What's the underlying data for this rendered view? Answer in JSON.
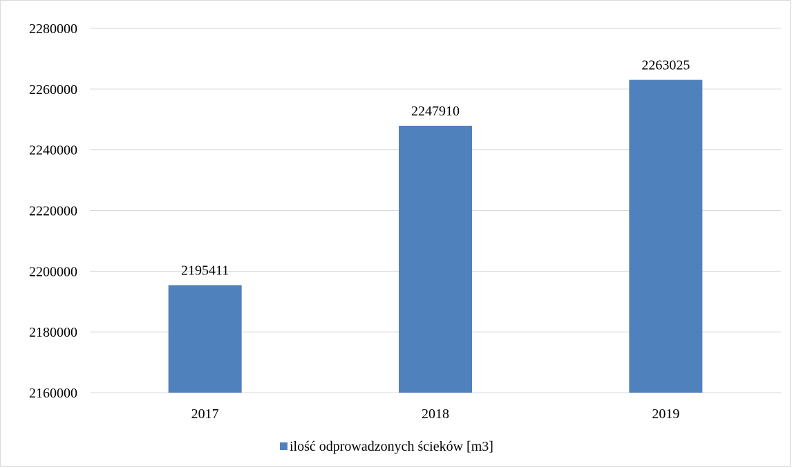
{
  "chart_data": {
    "type": "bar",
    "categories": [
      "2017",
      "2018",
      "2019"
    ],
    "series": [
      {
        "name": "ilość odprowadzonych ścieków [m3]",
        "values": [
          2195411,
          2247910,
          2263025
        ],
        "color": "#4F81BD"
      }
    ],
    "data_labels": [
      "2195411",
      "2247910",
      "2263025"
    ],
    "ylim": [
      2160000,
      2280000
    ],
    "yticks": [
      2160000,
      2180000,
      2200000,
      2220000,
      2240000,
      2260000,
      2280000
    ],
    "ytick_labels": [
      "2160000",
      "2180000",
      "2200000",
      "2220000",
      "2240000",
      "2260000",
      "2280000"
    ],
    "grid": true,
    "gridline_color": "#d9d9d9",
    "legend_position": "bottom"
  }
}
